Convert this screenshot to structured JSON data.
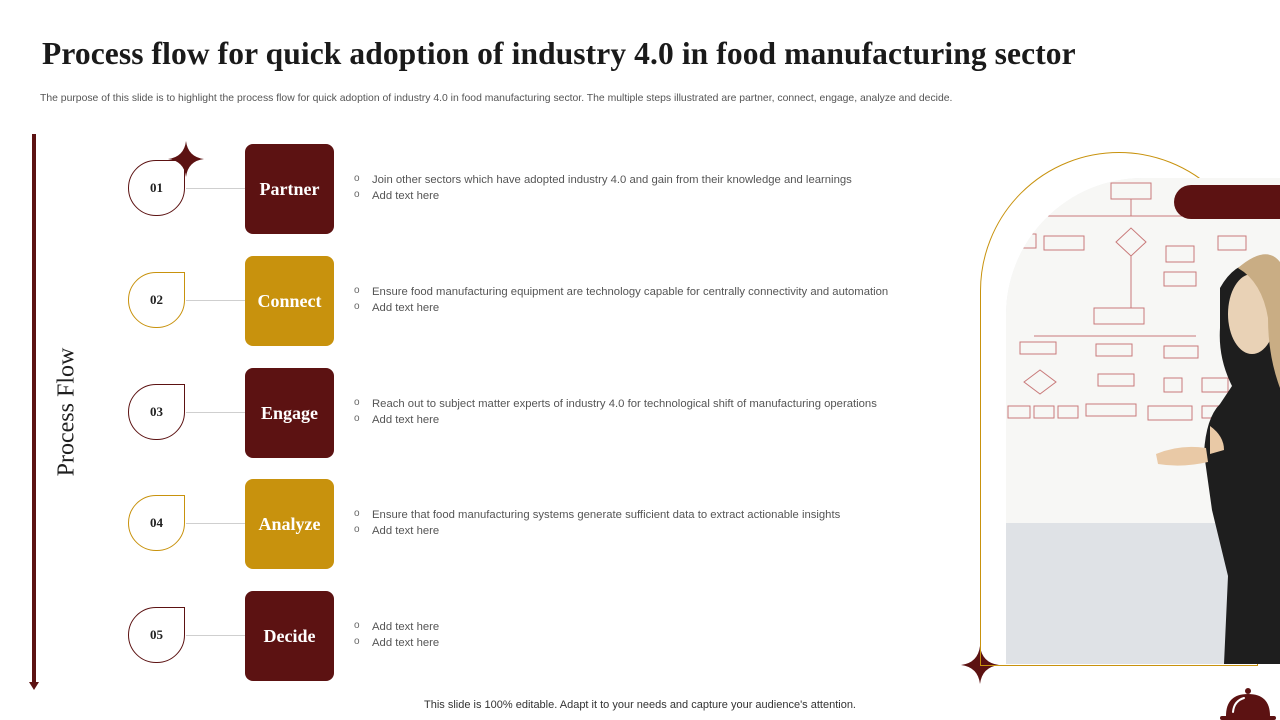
{
  "title": "Process flow for quick adoption of industry 4.0 in food manufacturing sector",
  "subtitle": "The purpose of this slide is to highlight the process flow for quick adoption of industry 4.0 in food manufacturing sector. The multiple steps illustrated are partner, connect, engage, analyze and decide.",
  "side_label": "Process Flow",
  "steps": [
    {
      "num": "01",
      "label": "Partner",
      "bullets": [
        "Join other sectors which have adopted industry 4.0 and gain from their knowledge and learnings",
        "Add text here"
      ]
    },
    {
      "num": "02",
      "label": "Connect",
      "bullets": [
        "Ensure food manufacturing equipment are technology capable for centrally connectivity and automation",
        "Add text here"
      ]
    },
    {
      "num": "03",
      "label": "Engage",
      "bullets": [
        "Reach out to subject matter experts of industry 4.0 for technological shift of manufacturing operations",
        "Add text here"
      ]
    },
    {
      "num": "04",
      "label": "Analyze",
      "bullets": [
        "Ensure that food manufacturing systems generate sufficient data to extract actionable insights",
        "Add text here"
      ]
    },
    {
      "num": "05",
      "label": "Decide",
      "bullets": [
        "Add text here",
        "Add text here"
      ]
    }
  ],
  "footer": "This slide is 100% editable. Adapt it to your needs and capture your audience's attention.",
  "colors": {
    "maroon": "#5c1212",
    "gold": "#c8920d"
  },
  "icons": [
    "sparkle-star-icon",
    "food-cloche-icon"
  ]
}
